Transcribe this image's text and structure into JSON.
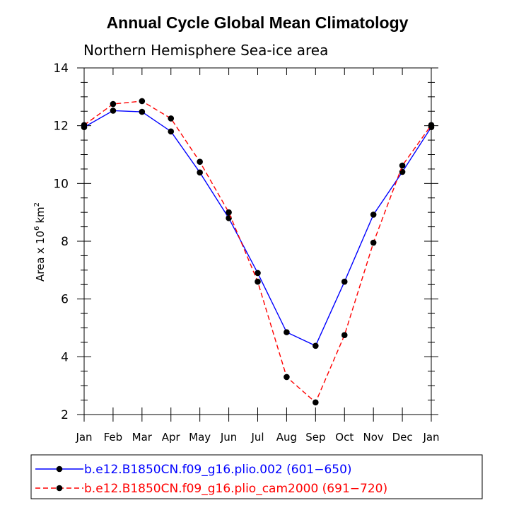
{
  "chart_data": {
    "type": "line",
    "title": "Annual Cycle Global Mean Climatology",
    "subtitle": "Northern Hemisphere Sea-ice area",
    "ylabel_prefix": "Area x 10",
    "ylabel_exponent": "6",
    "ylabel_unit": "km",
    "ylabel_unit_exponent": "2",
    "categories": [
      "Jan",
      "Feb",
      "Mar",
      "Apr",
      "May",
      "Jun",
      "Jul",
      "Aug",
      "Sep",
      "Oct",
      "Nov",
      "Dec",
      "Jan"
    ],
    "ylim": [
      2,
      14
    ],
    "yticks": [
      2,
      4,
      6,
      8,
      10,
      12,
      14
    ],
    "yminor_step": 0.5,
    "series": [
      {
        "name": "b.e12.B1850CN.f09_g16.plio.002 (601−650)",
        "color": "#0000ff",
        "style": "solid",
        "values": [
          11.95,
          12.52,
          12.48,
          11.8,
          10.38,
          8.8,
          6.9,
          4.85,
          4.38,
          6.6,
          8.92,
          10.4,
          11.95
        ]
      },
      {
        "name": "b.e12.B1850CN.f09_g16.plio_cam2000 (691−720)",
        "color": "#ff0000",
        "style": "dashed",
        "values": [
          12.02,
          12.75,
          12.85,
          12.25,
          10.75,
          9.0,
          6.6,
          3.3,
          2.42,
          4.75,
          7.95,
          10.62,
          12.02
        ]
      }
    ],
    "grid": false,
    "legend_position": "bottom"
  }
}
